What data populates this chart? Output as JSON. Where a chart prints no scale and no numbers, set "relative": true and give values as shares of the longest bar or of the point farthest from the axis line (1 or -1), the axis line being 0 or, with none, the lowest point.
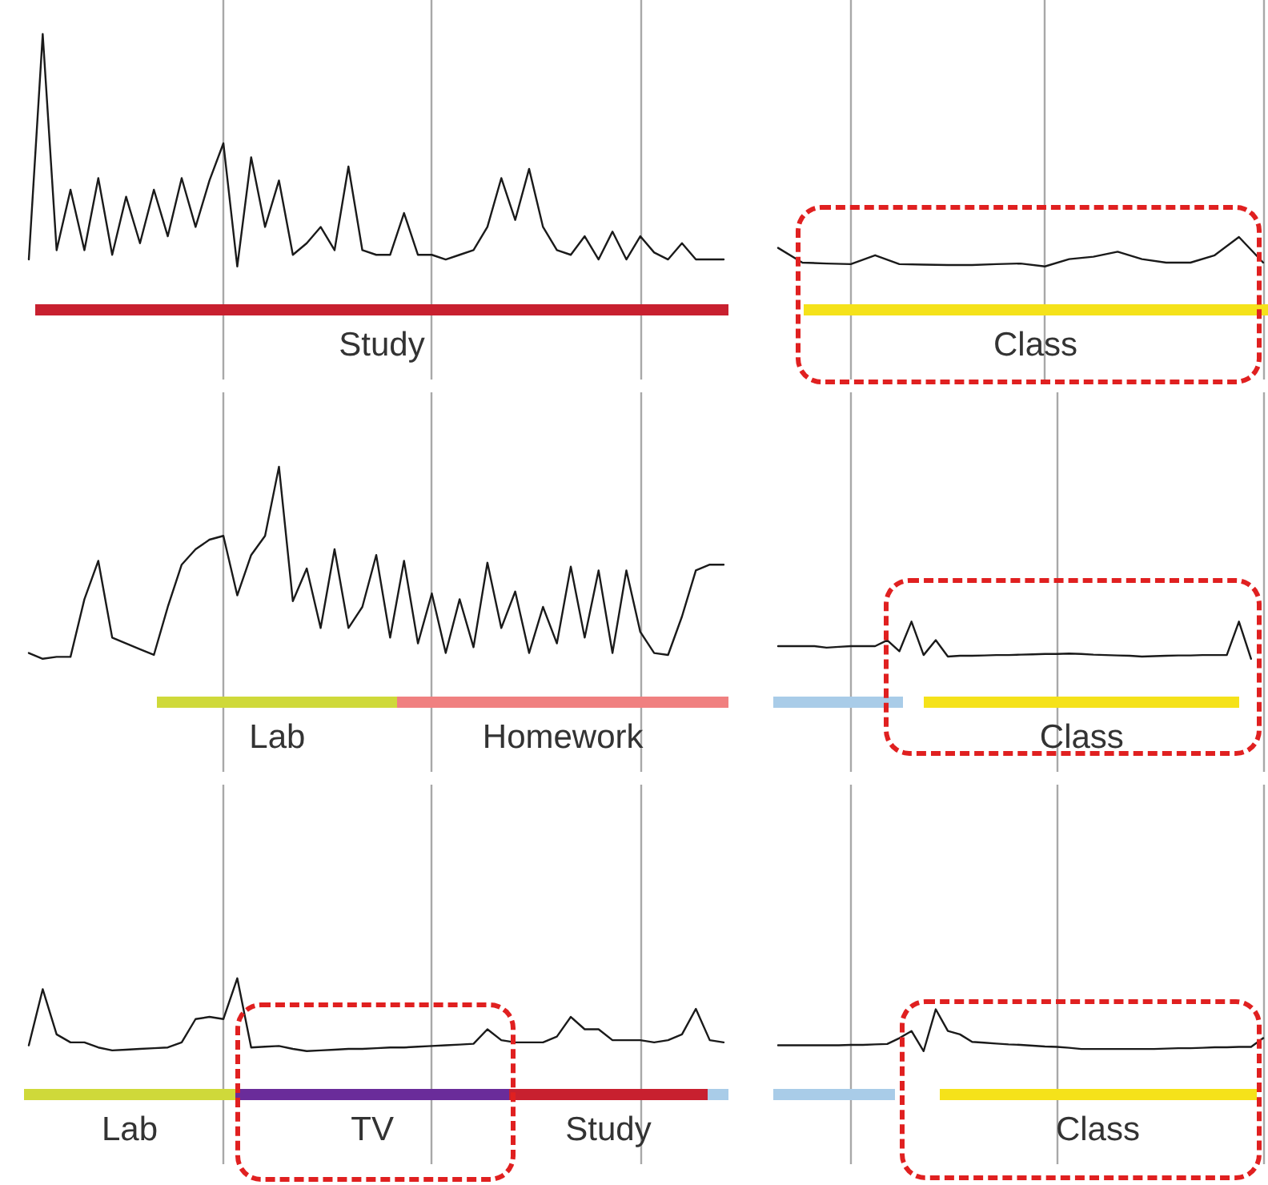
{
  "chart_data": [
    {
      "type": "line",
      "relative": true,
      "grid": "x",
      "marker": "none",
      "annotations": [
        "Study"
      ],
      "categories": [
        null,
        null,
        null,
        null,
        null,
        null,
        null,
        null,
        null,
        null,
        null,
        null,
        null,
        null,
        null,
        null,
        null,
        null,
        null,
        null,
        null,
        null,
        null,
        null,
        null,
        null,
        null,
        null,
        null,
        null,
        null,
        null,
        null,
        null,
        null,
        null,
        null,
        null,
        null,
        null,
        null,
        null,
        null,
        null,
        null,
        null,
        null,
        null,
        null,
        null,
        null
      ],
      "series": [
        {
          "color": "#1a1a1a",
          "values": [
            0.03,
            1.0,
            0.07,
            0.33,
            0.07,
            0.38,
            0.05,
            0.3,
            0.1,
            0.33,
            0.13,
            0.38,
            0.17,
            0.37,
            0.53,
            0,
            0.47,
            0.17,
            0.37,
            0.05,
            0.1,
            0.17,
            0.07,
            0.43,
            0.07,
            0.05,
            0.05,
            0.23,
            0.05,
            0.05,
            0.03,
            0.05,
            0.07,
            0.17,
            0.38,
            0.2,
            0.42,
            0.17,
            0.07,
            0.05,
            0.13,
            0.03,
            0.15,
            0.03,
            0.13,
            0.06,
            0.03,
            0.1,
            0.03,
            0.03,
            0.03
          ]
        }
      ]
    },
    {
      "type": "line",
      "relative": true,
      "grid": "x",
      "marker": "none",
      "annotations": [
        "Class"
      ],
      "categories": [
        null,
        null,
        null,
        null,
        null,
        null,
        null,
        null,
        null,
        null,
        null,
        null,
        null,
        null,
        null,
        null,
        null,
        null,
        null,
        null,
        null
      ],
      "series": [
        {
          "color": "#1a1a1a",
          "values": [
            0.63,
            0.13,
            0.1,
            0.08,
            0.38,
            0.08,
            0.06,
            0.05,
            0.05,
            0.08,
            0.1,
            0,
            0.25,
            0.33,
            0.5,
            0.25,
            0.13,
            0.13,
            0.38,
            1.0,
            0.13
          ]
        }
      ]
    },
    {
      "type": "line",
      "relative": true,
      "grid": "x",
      "marker": "none",
      "annotations": [
        "Lab",
        "Homework"
      ],
      "categories": [
        null,
        null,
        null,
        null,
        null,
        null,
        null,
        null,
        null,
        null,
        null,
        null,
        null,
        null,
        null,
        null,
        null,
        null,
        null,
        null,
        null,
        null,
        null,
        null,
        null,
        null,
        null,
        null,
        null,
        null,
        null,
        null,
        null,
        null,
        null,
        null,
        null,
        null,
        null,
        null,
        null,
        null,
        null,
        null,
        null,
        null,
        null,
        null,
        null,
        null,
        null
      ],
      "series": [
        {
          "color": "#1a1a1a",
          "values": [
            0.03,
            0,
            0.01,
            0.01,
            0.31,
            0.51,
            0.11,
            0.08,
            0.05,
            0.02,
            0.27,
            0.49,
            0.57,
            0.62,
            0.64,
            0.33,
            0.54,
            0.64,
            1.0,
            0.3,
            0.47,
            0.16,
            0.57,
            0.16,
            0.27,
            0.54,
            0.11,
            0.51,
            0.08,
            0.34,
            0.03,
            0.31,
            0.06,
            0.5,
            0.16,
            0.35,
            0.03,
            0.27,
            0.08,
            0.48,
            0.11,
            0.46,
            0.03,
            0.46,
            0.14,
            0.03,
            0.02,
            0.22,
            0.46,
            0.49,
            0.49
          ]
        }
      ]
    },
    {
      "type": "line",
      "relative": true,
      "grid": "x",
      "marker": "none",
      "annotations": [
        "Class"
      ],
      "categories": [
        null,
        null,
        null,
        null,
        null,
        null,
        null,
        null,
        null,
        null,
        null,
        null,
        null,
        null,
        null,
        null,
        null,
        null,
        null,
        null,
        null,
        null,
        null,
        null,
        null,
        null,
        null,
        null,
        null,
        null,
        null,
        null,
        null,
        null,
        null,
        null,
        null,
        null,
        null,
        null,
        null
      ],
      "series": [
        {
          "color": "#1a1a1a",
          "values": [
            0.34,
            0.34,
            0.34,
            0.34,
            0.3,
            0.32,
            0.34,
            0.34,
            0.34,
            0.5,
            0.2,
            1.0,
            0.1,
            0.5,
            0.06,
            0.08,
            0.08,
            0.09,
            0.1,
            0.1,
            0.11,
            0.12,
            0.13,
            0.13,
            0.14,
            0.13,
            0.11,
            0.1,
            0.09,
            0.08,
            0.06,
            0.07,
            0.08,
            0.09,
            0.09,
            0.1,
            0.1,
            0.1,
            1.0,
            0,
            null
          ]
        }
      ]
    },
    {
      "type": "line",
      "relative": true,
      "grid": "x",
      "marker": "none",
      "annotations": [
        "Lab",
        "TV",
        "Study"
      ],
      "categories": [
        null,
        null,
        null,
        null,
        null,
        null,
        null,
        null,
        null,
        null,
        null,
        null,
        null,
        null,
        null,
        null,
        null,
        null,
        null,
        null,
        null,
        null,
        null,
        null,
        null,
        null,
        null,
        null,
        null,
        null,
        null,
        null,
        null,
        null,
        null,
        null,
        null,
        null,
        null,
        null,
        null,
        null,
        null,
        null,
        null,
        null,
        null,
        null,
        null,
        null,
        null
      ],
      "series": [
        {
          "color": "#1a1a1a",
          "values": [
            0.08,
            0.85,
            0.23,
            0.12,
            0.12,
            0.05,
            0.01,
            0.02,
            0.03,
            0.04,
            0.05,
            0.12,
            0.44,
            0.47,
            0.44,
            1.0,
            0.05,
            0.06,
            0.07,
            0.03,
            0,
            0.01,
            0.02,
            0.03,
            0.03,
            0.04,
            0.05,
            0.05,
            0.06,
            0.07,
            0.08,
            0.09,
            0.1,
            0.3,
            0.15,
            0.12,
            0.12,
            0.12,
            0.2,
            0.47,
            0.3,
            0.3,
            0.15,
            0.15,
            0.15,
            0.12,
            0.15,
            0.23,
            0.58,
            0.15,
            0.12
          ]
        }
      ]
    },
    {
      "type": "line",
      "relative": true,
      "grid": "x",
      "marker": "none",
      "annotations": [
        "Class"
      ],
      "categories": [
        null,
        null,
        null,
        null,
        null,
        null,
        null,
        null,
        null,
        null,
        null,
        null,
        null,
        null,
        null,
        null,
        null,
        null,
        null,
        null,
        null,
        null,
        null,
        null,
        null,
        null,
        null,
        null,
        null,
        null,
        null,
        null,
        null,
        null,
        null,
        null,
        null,
        null,
        null,
        null,
        null
      ],
      "series": [
        {
          "color": "#1a1a1a",
          "values": [
            0.14,
            0.14,
            0.14,
            0.14,
            0.14,
            0.14,
            0.15,
            0.15,
            0.16,
            0.17,
            0.31,
            0.48,
            0,
            1.0,
            0.48,
            0.4,
            0.22,
            0.2,
            0.18,
            0.16,
            0.15,
            0.13,
            0.11,
            0.1,
            0.08,
            0.05,
            0.05,
            0.05,
            0.05,
            0.05,
            0.05,
            0.05,
            0.06,
            0.07,
            0.07,
            0.08,
            0.09,
            0.09,
            0.1,
            0.1,
            0.31
          ]
        }
      ]
    }
  ]
}
